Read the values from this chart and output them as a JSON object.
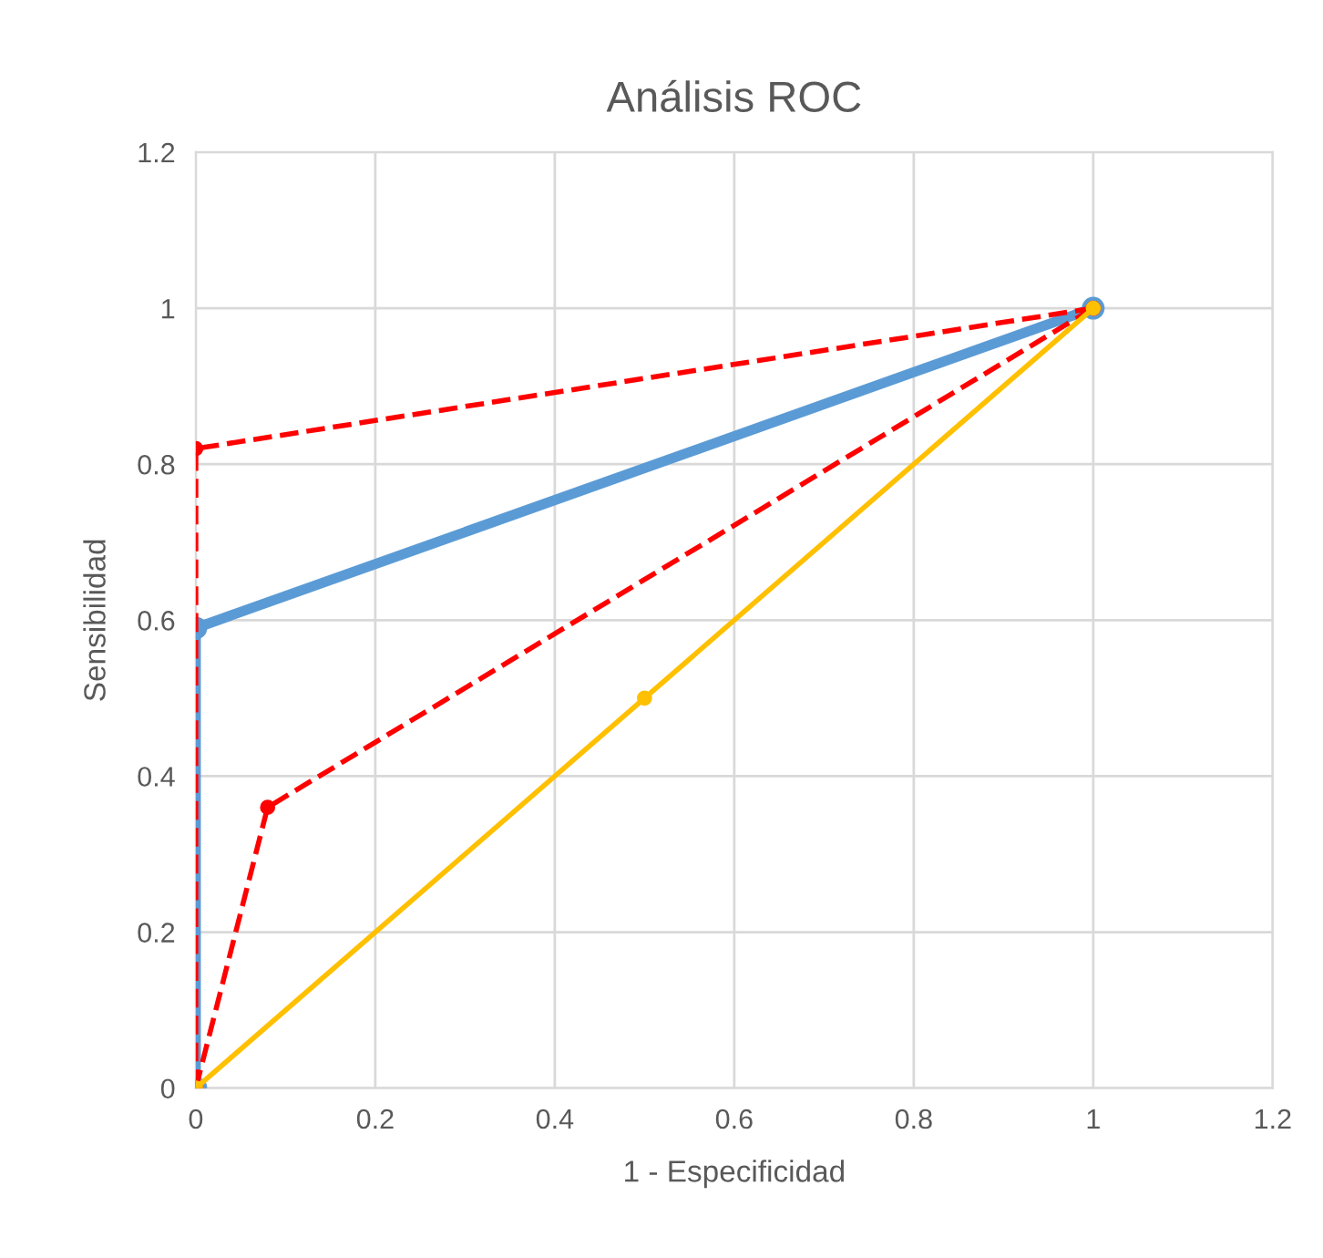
{
  "chart_data": {
    "type": "line",
    "title": "Análisis ROC",
    "xlabel": "1 - Especificidad",
    "ylabel": "Sensibilidad",
    "xlim": [
      0,
      1.2
    ],
    "xticks": [
      0,
      0.2,
      0.4,
      0.6,
      0.8,
      1,
      1.2
    ],
    "ylim": [
      0,
      1.2
    ],
    "yticks": [
      0,
      0.2,
      0.4,
      0.6,
      0.8,
      1,
      1.2
    ],
    "grid": true,
    "marker": "circle",
    "series": [
      {
        "color": "#5b9bd5",
        "x": [
          0,
          0,
          1
        ],
        "values": [
          0,
          0.59,
          1
        ],
        "line_style": "solid"
      },
      {
        "color": "#ff0000",
        "x": [
          0,
          0,
          1
        ],
        "values": [
          0,
          0.82,
          1
        ],
        "line_style": "dashed"
      },
      {
        "color": "#ff0000",
        "x": [
          0,
          0.08,
          1
        ],
        "values": [
          0,
          0.36,
          1
        ],
        "line_style": "dashed"
      },
      {
        "color": "#ffc000",
        "x": [
          0,
          0.5,
          1
        ],
        "values": [
          0,
          0.5,
          1
        ],
        "line_style": "solid"
      }
    ]
  }
}
